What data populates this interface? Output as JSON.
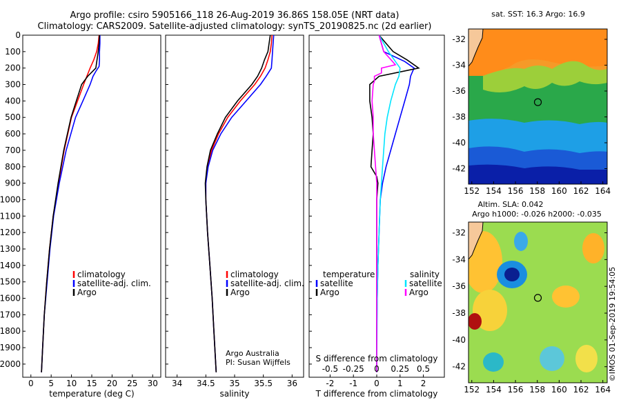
{
  "title_line1": "Argo profile: csiro 5905166_118 26-Aug-2019 36.86S 158.05E (NRT data)",
  "title_line2": "Climatology: CARS2009. Satellite-adjusted climatology: synTS_20190825.nc (2d earlier)",
  "colors": {
    "climatology": "#ff0000",
    "satellite": "#0000ff",
    "argo": "#000000",
    "sat_salinity": "#00e5ff",
    "argo_salinity": "#ff00ff"
  },
  "footer_stamp": "©IMOS 01-Sep-2019 19:54:05",
  "chart_data": [
    {
      "type": "line",
      "name": "temperature",
      "xlabel": "temperature (deg C)",
      "xlim": [
        -2,
        32
      ],
      "ylim": [
        2080,
        0
      ],
      "x_ticks": [
        "0",
        "5",
        "10",
        "15",
        "20",
        "25",
        "30"
      ],
      "x_tick_values": [
        0,
        5,
        10,
        15,
        20,
        25,
        30
      ],
      "y_ticks": [
        "0",
        "100",
        "200",
        "300",
        "400",
        "500",
        "600",
        "700",
        "800",
        "900",
        "1000",
        "1100",
        "1200",
        "1300",
        "1400",
        "1500",
        "1600",
        "1700",
        "1800",
        "1900",
        "2000"
      ],
      "y_tick_values": [
        0,
        100,
        200,
        300,
        400,
        500,
        600,
        700,
        800,
        900,
        1000,
        1100,
        1200,
        1300,
        1400,
        1500,
        1600,
        1700,
        1800,
        1900,
        2000
      ],
      "legend": [
        "climatology",
        "satellite-adj. clim.",
        "Argo"
      ],
      "series": [
        {
          "name": "climatology",
          "color": "#ff0000",
          "depth": [
            0,
            50,
            100,
            150,
            200,
            250,
            300,
            400,
            500,
            700,
            900,
            1100,
            1300,
            1500,
            1700,
            1900,
            2050
          ],
          "values": [
            16.8,
            16.6,
            16.2,
            15.5,
            14.6,
            13.8,
            13.0,
            11.5,
            10.0,
            8.2,
            6.8,
            5.5,
            4.6,
            3.9,
            3.3,
            2.9,
            2.6
          ]
        },
        {
          "name": "satellite-adj. clim.",
          "color": "#0000ff",
          "depth": [
            0,
            50,
            100,
            150,
            190,
            220,
            250,
            300,
            400,
            500,
            700,
            900,
            1100,
            1300,
            1500,
            1700,
            1900,
            2050
          ],
          "values": [
            17.0,
            17.0,
            16.9,
            16.9,
            16.8,
            16.0,
            15.3,
            14.6,
            12.8,
            11.0,
            8.7,
            7.0,
            5.6,
            4.7,
            4.0,
            3.3,
            2.9,
            2.6
          ]
        },
        {
          "name": "Argo",
          "color": "#000000",
          "depth": [
            0,
            50,
            100,
            150,
            200,
            250,
            300,
            400,
            500,
            700,
            900,
            1100,
            1300,
            1500,
            1700,
            1900,
            2050
          ],
          "values": [
            16.9,
            16.8,
            16.6,
            16.3,
            16.0,
            14.0,
            12.5,
            11.2,
            9.9,
            8.1,
            6.7,
            5.5,
            4.6,
            3.9,
            3.3,
            2.9,
            2.6
          ]
        }
      ]
    },
    {
      "type": "line",
      "name": "salinity",
      "xlabel": "salinity",
      "xlim": [
        33.8,
        36.2
      ],
      "ylim": [
        2080,
        0
      ],
      "x_ticks": [
        "34",
        "34.5",
        "35",
        "35.5",
        "36"
      ],
      "x_tick_values": [
        34,
        34.5,
        35,
        35.5,
        36
      ],
      "legend": [
        "climatology",
        "satellite-adj. clim.",
        "Argo"
      ],
      "credit_line1": "Argo Australia",
      "credit_line2": "PI: Susan Wijffels",
      "series": [
        {
          "name": "climatology",
          "color": "#ff0000",
          "depth": [
            0,
            50,
            100,
            150,
            200,
            250,
            300,
            400,
            500,
            600,
            700,
            800,
            900,
            1000,
            1200,
            1400,
            1600,
            1800,
            2050
          ],
          "values": [
            35.65,
            35.64,
            35.62,
            35.58,
            35.53,
            35.45,
            35.35,
            35.1,
            34.88,
            34.72,
            34.6,
            34.53,
            34.5,
            34.5,
            34.53,
            34.57,
            34.61,
            34.64,
            34.68
          ]
        },
        {
          "name": "satellite-adj. clim.",
          "color": "#0000ff",
          "depth": [
            0,
            50,
            100,
            150,
            200,
            250,
            300,
            400,
            500,
            600,
            700,
            800,
            900,
            1000,
            1200,
            1400,
            1600,
            1800,
            2050
          ],
          "values": [
            35.68,
            35.67,
            35.66,
            35.65,
            35.64,
            35.55,
            35.45,
            35.2,
            34.95,
            34.76,
            34.62,
            34.54,
            34.5,
            34.5,
            34.53,
            34.57,
            34.61,
            34.64,
            34.68
          ]
        },
        {
          "name": "Argo",
          "color": "#000000",
          "depth": [
            0,
            50,
            100,
            150,
            200,
            250,
            300,
            400,
            500,
            600,
            700,
            800,
            900,
            1000,
            1200,
            1400,
            1600,
            1800,
            2050
          ],
          "values": [
            35.62,
            35.6,
            35.58,
            35.52,
            35.47,
            35.4,
            35.3,
            35.05,
            34.84,
            34.7,
            34.58,
            34.52,
            34.49,
            34.5,
            34.53,
            34.57,
            34.61,
            34.64,
            34.68
          ]
        }
      ]
    },
    {
      "type": "line",
      "name": "difference",
      "xlabel": "T difference from climatology",
      "top_xlabel": "S difference from climatology",
      "xlim": [
        -2.9,
        2.9
      ],
      "ylim": [
        2080,
        0
      ],
      "x_ticks": [
        "-2",
        "-1",
        "0",
        "1",
        "2"
      ],
      "x_tick_values": [
        -2,
        -1,
        0,
        1,
        2
      ],
      "s_ticks": [
        "-0.5",
        "-0.25",
        "0",
        "0.25",
        "0.5"
      ],
      "s_tick_values": [
        -2,
        -1,
        0,
        1,
        2
      ],
      "legend_temperature_title": "temperature",
      "legend_salinity_title": "salinity",
      "legend_temperature": [
        "satellite",
        "Argo"
      ],
      "legend_salinity": [
        "satellite",
        "Argo"
      ],
      "series": [
        {
          "name": "temperature satellite",
          "color": "#0000ff",
          "depth": [
            0,
            100,
            160,
            200,
            250,
            300,
            400,
            500,
            600,
            700,
            800,
            900,
            1000,
            1200,
            1400,
            1600,
            1800,
            2050
          ],
          "values": [
            0.1,
            0.3,
            1.2,
            1.6,
            1.45,
            1.4,
            1.2,
            1.0,
            0.8,
            0.6,
            0.4,
            0.25,
            0.15,
            0.1,
            0.05,
            0.02,
            0.0,
            0.0
          ]
        },
        {
          "name": "temperature Argo",
          "color": "#000000",
          "depth": [
            0,
            50,
            100,
            150,
            200,
            250,
            300,
            400,
            500,
            600,
            700,
            800,
            860,
            900,
            1000,
            1200,
            1500,
            2050
          ],
          "values": [
            0.1,
            0.4,
            0.7,
            1.3,
            1.8,
            0.1,
            -0.3,
            -0.3,
            -0.2,
            -0.15,
            -0.2,
            -0.25,
            0.0,
            0.05,
            0.0,
            0.0,
            0.0,
            0.0
          ]
        },
        {
          "name": "salinity satellite",
          "color": "#00e5ff",
          "depth": [
            0,
            100,
            200,
            250,
            300,
            400,
            500,
            600,
            700,
            800,
            900,
            1000,
            1200,
            1400,
            1600,
            2050
          ],
          "values": [
            0.1,
            0.5,
            1.0,
            0.95,
            0.8,
            0.6,
            0.45,
            0.35,
            0.3,
            0.25,
            0.2,
            0.15,
            0.1,
            0.05,
            0.02,
            0.0
          ]
        },
        {
          "name": "salinity Argo",
          "color": "#ff00ff",
          "depth": [
            0,
            100,
            180,
            200,
            230,
            250,
            280,
            300,
            400,
            500,
            600,
            700,
            800,
            900,
            1000,
            1200,
            2050
          ],
          "values": [
            0.1,
            0.3,
            0.8,
            0.2,
            0.2,
            -0.1,
            -0.1,
            -0.15,
            -0.2,
            -0.15,
            -0.15,
            -0.1,
            -0.05,
            0.0,
            0.0,
            0.0,
            0.0
          ]
        }
      ]
    },
    {
      "type": "heatmap",
      "name": "sst_map",
      "title": "sat. SST: 16.3 Argo: 16.9",
      "x_ticks": [
        "152",
        "154",
        "156",
        "158",
        "160",
        "162",
        "164"
      ],
      "x_tick_values": [
        152,
        154,
        156,
        158,
        160,
        162,
        164
      ],
      "y_ticks": [
        "-32",
        "-34",
        "-36",
        "-38",
        "-40",
        "-42"
      ],
      "y_tick_values": [
        -32,
        -34,
        -36,
        -38,
        -40,
        -42
      ],
      "xlim": [
        151.7,
        164.4
      ],
      "ylim": [
        -43.2,
        -31.2
      ],
      "marker": {
        "lon": 158.05,
        "lat": -36.86
      }
    },
    {
      "type": "heatmap",
      "name": "sla_map",
      "title_line1": "Altim. SLA: 0.042",
      "title_line2": "Argo h1000: -0.026 h2000: -0.035",
      "x_ticks": [
        "152",
        "154",
        "156",
        "158",
        "160",
        "162",
        "164"
      ],
      "x_tick_values": [
        152,
        154,
        156,
        158,
        160,
        162,
        164
      ],
      "y_ticks": [
        "-32",
        "-34",
        "-36",
        "-38",
        "-40",
        "-42"
      ],
      "y_tick_values": [
        -32,
        -34,
        -36,
        -38,
        -40,
        -42
      ],
      "xlim": [
        151.7,
        164.4
      ],
      "ylim": [
        -43.2,
        -31.2
      ],
      "marker": {
        "lon": 158.05,
        "lat": -36.86
      }
    }
  ]
}
